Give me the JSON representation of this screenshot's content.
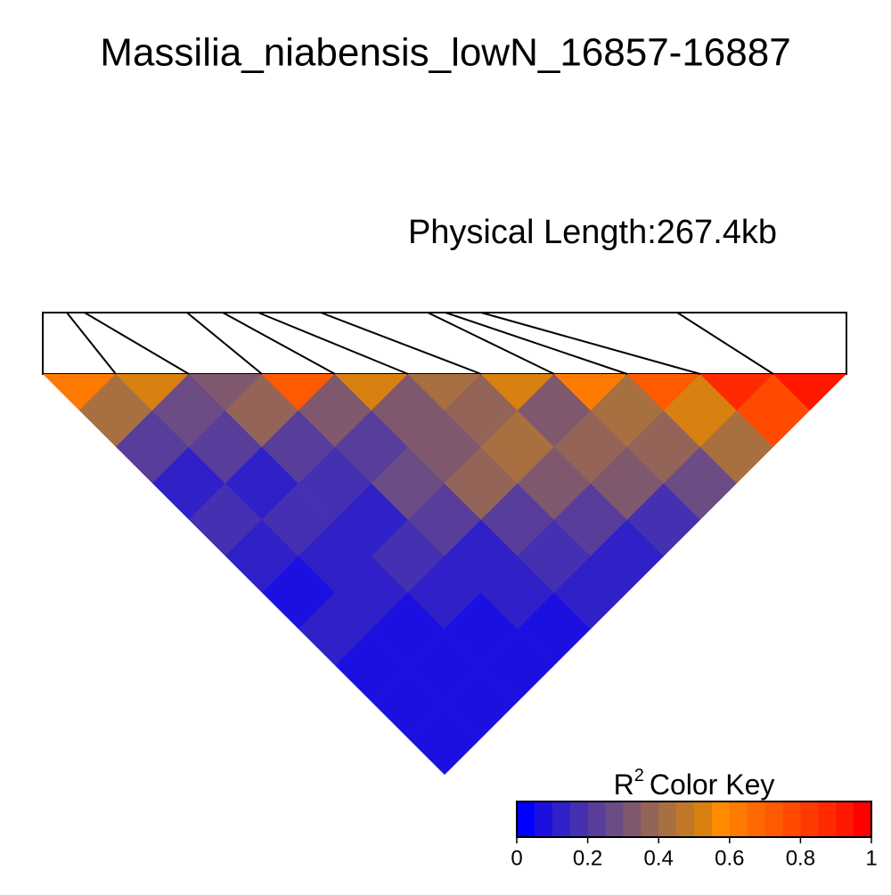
{
  "chart_data": {
    "type": "ld-heatmap",
    "title": "Massilia_niabensis_lowN_16857-16887",
    "physical_length_label": "Physical Length:267.4kb",
    "marker_positions": [
      0.0,
      8.0,
      13.9,
      48.0,
      59.9,
      71.7,
      92.5,
      128.1,
      134.0,
      145.9,
      211.1,
      267.4
    ],
    "r2": [
      [
        0.6,
        0.4,
        0.2,
        0.1,
        0.15,
        0.1,
        0.05,
        0.1,
        0.05,
        0.05,
        0.05
      ],
      [
        0.5,
        0.25,
        0.2,
        0.1,
        0.15,
        0.1,
        0.1,
        0.05,
        0.05,
        0.05
      ],
      [
        0.3,
        0.35,
        0.2,
        0.15,
        0.1,
        0.15,
        0.1,
        0.05,
        0.05
      ],
      [
        0.7,
        0.3,
        0.2,
        0.25,
        0.2,
        0.1,
        0.1,
        0.05
      ],
      [
        0.5,
        0.3,
        0.3,
        0.35,
        0.2,
        0.15,
        0.1
      ],
      [
        0.4,
        0.35,
        0.4,
        0.3,
        0.2,
        0.1
      ],
      [
        0.5,
        0.3,
        0.35,
        0.3,
        0.15
      ],
      [
        0.6,
        0.4,
        0.35,
        0.25
      ],
      [
        0.7,
        0.5,
        0.4
      ],
      [
        0.85,
        0.75
      ],
      [
        0.9
      ]
    ],
    "color_key": {
      "title": "R",
      "title_superscript": "2",
      "title_rest": "Color Key",
      "lim": [
        0,
        1
      ],
      "ticks": [
        0,
        0.2,
        0.4,
        0.6,
        0.8,
        1
      ],
      "colors": [
        "#0000FF",
        "#1C10E0",
        "#3020C8",
        "#4430B0",
        "#583E9A",
        "#6C4C84",
        "#80586E",
        "#946458",
        "#A87040",
        "#C07828",
        "#D88010",
        "#FF8C00",
        "#FF7A00",
        "#FF6A00",
        "#FF5A00",
        "#FF4A00",
        "#FF3A00",
        "#FF2A00",
        "#FF1800",
        "#FF0000"
      ]
    }
  }
}
